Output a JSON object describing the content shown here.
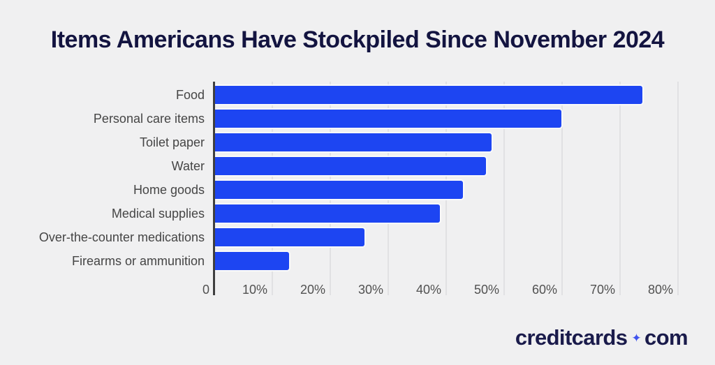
{
  "title": "Items Americans Have Stockpiled Since November 2024",
  "chart_data": {
    "type": "bar",
    "orientation": "horizontal",
    "title": "Items Americans Have Stockpiled Since November 2024",
    "categories": [
      "Food",
      "Personal care items",
      "Toilet paper",
      "Water",
      "Home goods",
      "Medical supplies",
      "Over-the-counter medications",
      "Firearms or ammunition"
    ],
    "values": [
      74,
      60,
      48,
      47,
      43,
      39,
      26,
      13
    ],
    "unit": "%",
    "xlabel": "",
    "ylabel": "",
    "xlim": [
      0,
      80
    ],
    "x_ticks": [
      "0",
      "10%",
      "20%",
      "30%",
      "40%",
      "50%",
      "60%",
      "70%",
      "80%"
    ],
    "x_tick_values": [
      0,
      10,
      20,
      30,
      40,
      50,
      60,
      70,
      80
    ],
    "grid": true,
    "legend": "none",
    "bar_color": "#1d45f2"
  },
  "colors": {
    "background": "#f0f0f1",
    "title_text": "#131440",
    "bar_fill": "#1d45f2",
    "category_label": "#454545",
    "tick_label": "#515151",
    "axis_line": "#3f3f3f",
    "gridline": "#e1e1e3",
    "logo_text": "#1a1b4b",
    "logo_sparkle": "#4053ee"
  },
  "footer": {
    "brand_left": "creditcards",
    "brand_right": "com",
    "separator_icon": "sparkle-icon",
    "sparkle_glyph": "✦"
  }
}
